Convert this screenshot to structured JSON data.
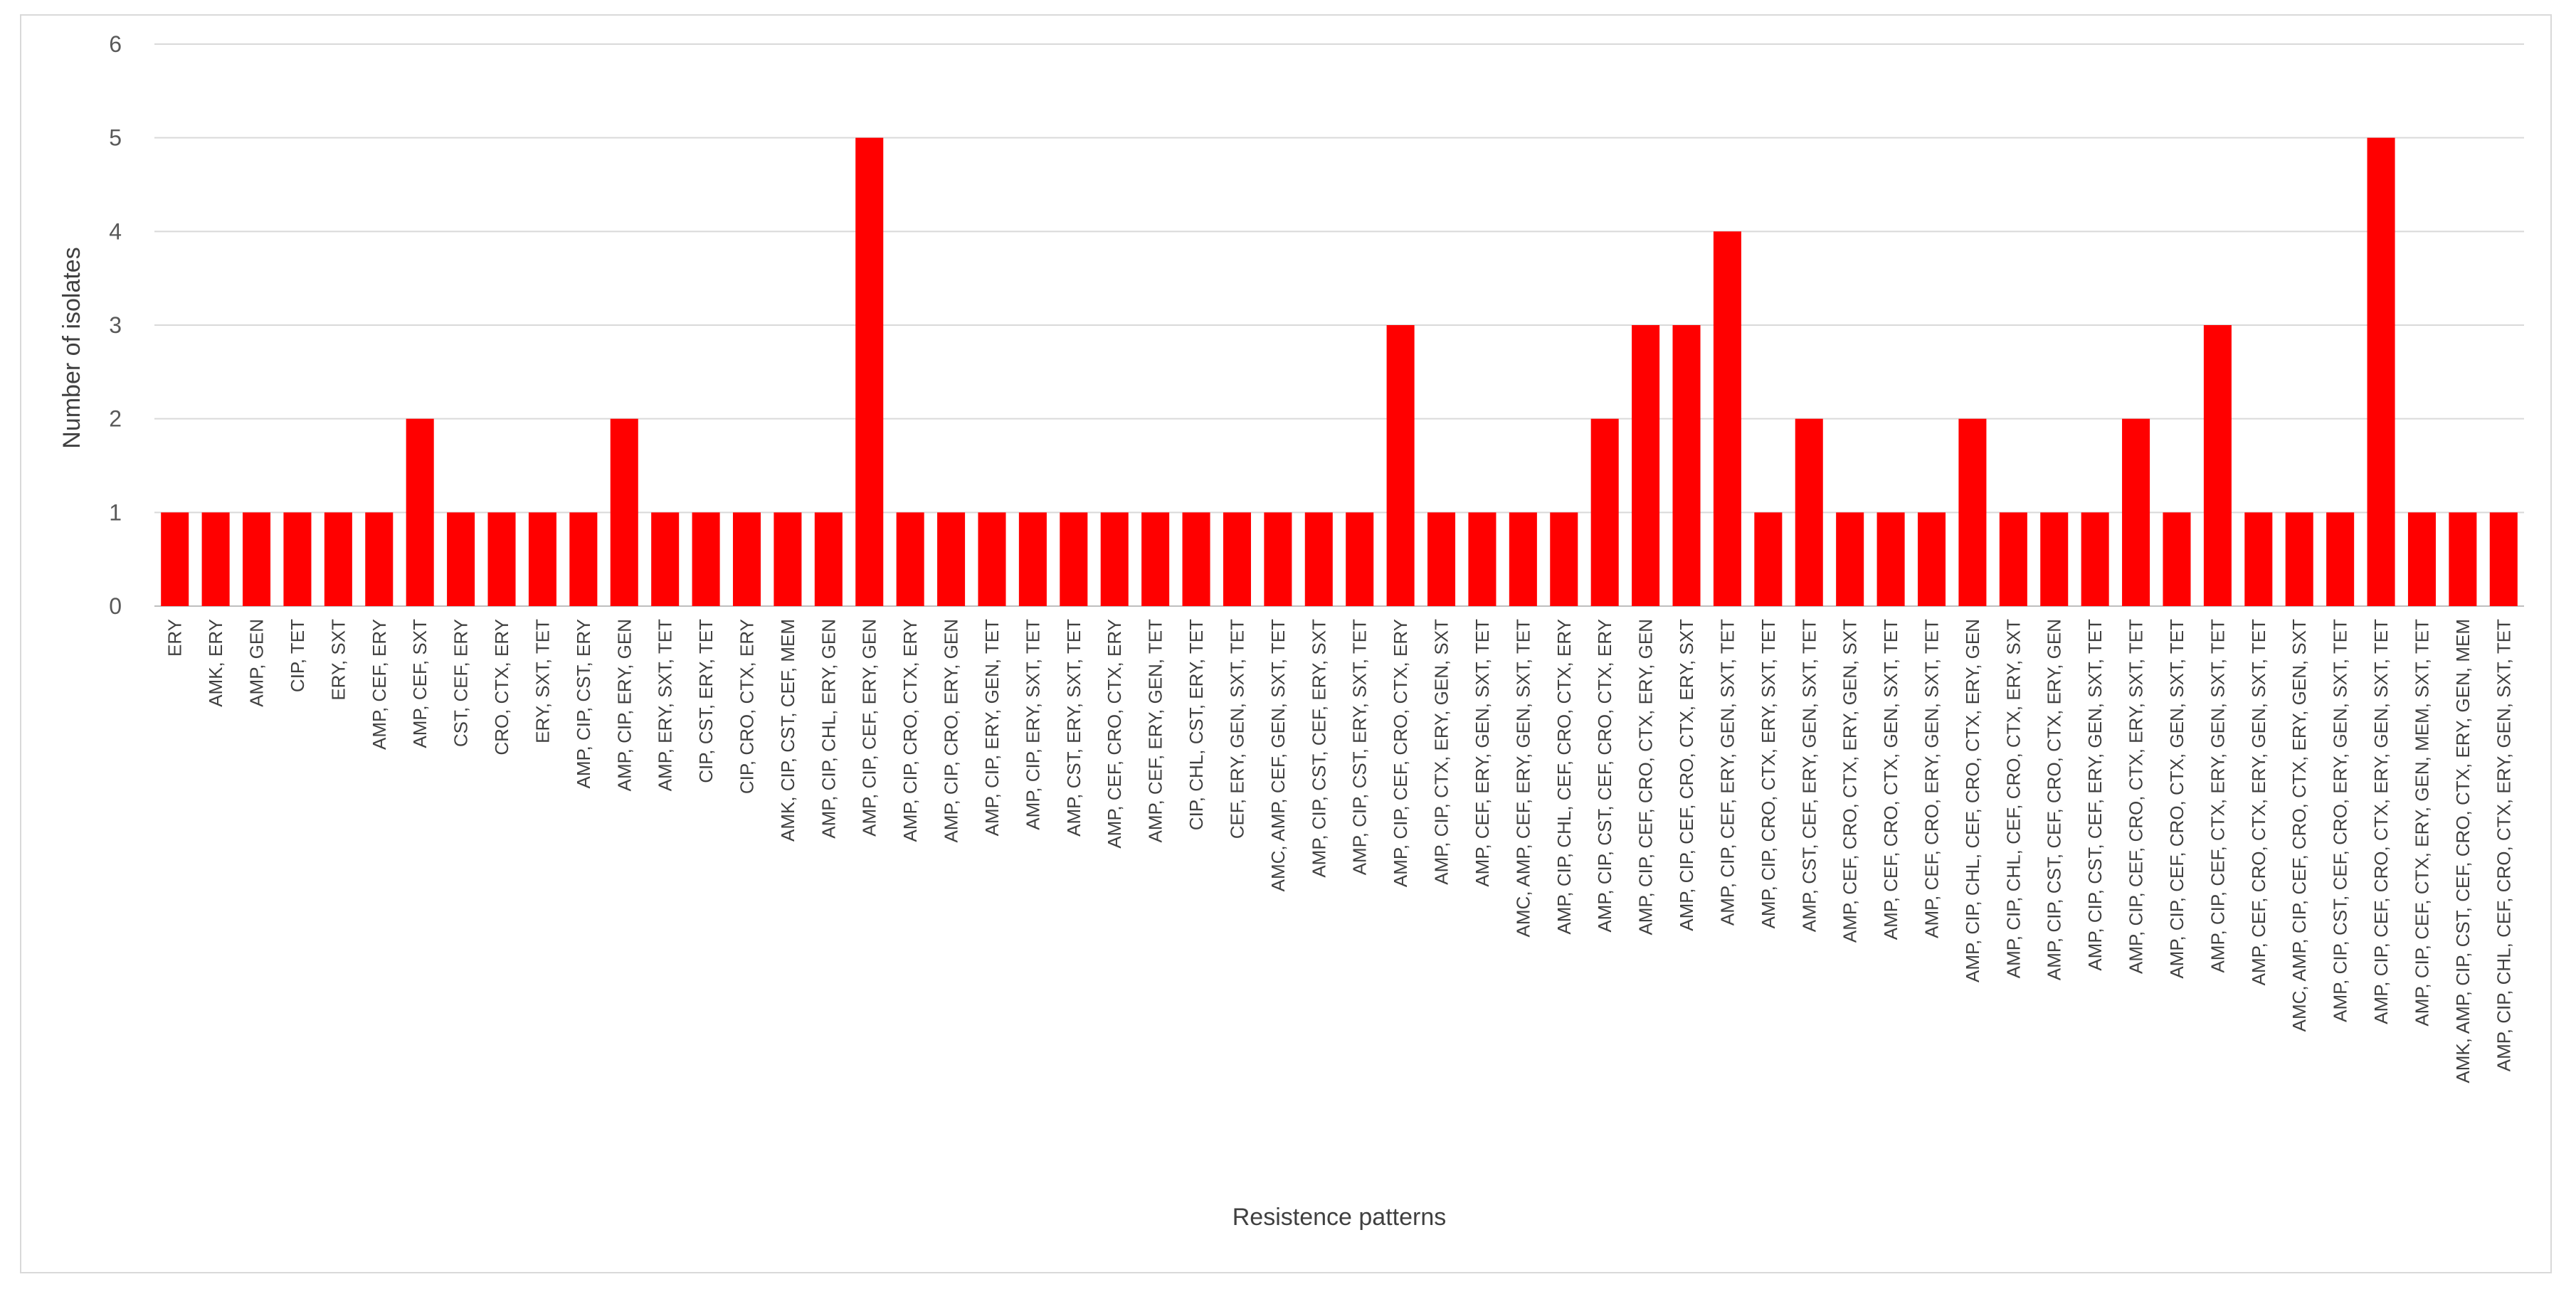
{
  "chart_data": {
    "type": "bar",
    "xlabel": "Resistence patterns",
    "ylabel": "Number of isolates",
    "ylim": [
      0,
      6
    ],
    "yticks": [
      0,
      1,
      2,
      3,
      4,
      5,
      6
    ],
    "grid": true,
    "bar_color": "#ff0000",
    "categories": [
      "ERY",
      "AMK, ERY",
      "AMP, GEN",
      "CIP, TET",
      "ERY, SXT",
      "AMP, CEF, ERY",
      "AMP, CEF, SXT",
      "CST, CEF, ERY",
      "CRO, CTX, ERY",
      "ERY, SXT, TET",
      "AMP, CIP, CST, ERY",
      "AMP, CIP, ERY, GEN",
      "AMP, ERY, SXT, TET",
      "CIP, CST, ERY, TET",
      "CIP, CRO, CTX, ERY",
      "AMK, CIP, CST, CEF, MEM",
      "AMP, CIP, CHL, ERY, GEN",
      "AMP, CIP, CEF, ERY, GEN",
      "AMP, CIP, CRO, CTX, ERY",
      "AMP, CIP, CRO, ERY, GEN",
      "AMP, CIP, ERY, GEN, TET",
      "AMP, CIP, ERY, SXT, TET",
      "AMP, CST, ERY, SXT, TET",
      "AMP, CEF, CRO, CTX, ERY",
      "AMP, CEF, ERY, GEN, TET",
      "CIP, CHL, CST, ERY, TET",
      "CEF, ERY, GEN, SXT, TET",
      "AMC, AMP, CEF, GEN, SXT, TET",
      "AMP, CIP, CST, CEF, ERY, SXT",
      "AMP, CIP, CST, ERY, SXT, TET",
      "AMP, CIP, CEF, CRO, CTX, ERY",
      "AMP, CIP, CTX, ERY, GEN, SXT",
      "AMP, CEF, ERY, GEN, SXT, TET",
      "AMC, AMP, CEF, ERY, GEN, SXT, TET",
      "AMP, CIP, CHL, CEF, CRO, CTX, ERY",
      "AMP, CIP, CST, CEF, CRO, CTX, ERY",
      "AMP, CIP, CEF, CRO, CTX, ERY, GEN",
      "AMP, CIP, CEF, CRO, CTX, ERY, SXT",
      "AMP, CIP, CEF, ERY, GEN, SXT, TET",
      "AMP, CIP, CRO, CTX, ERY, SXT, TET",
      "AMP, CST, CEF, ERY, GEN, SXT, TET",
      "AMP, CEF, CRO, CTX, ERY, GEN, SXT",
      "AMP, CEF, CRO, CTX, GEN, SXT, TET",
      "AMP, CEF, CRO, ERY, GEN, SXT, TET",
      "AMP, CIP, CHL, CEF, CRO, CTX, ERY, GEN",
      "AMP, CIP, CHL, CEF, CRO, CTX, ERY, SXT",
      "AMP, CIP, CST, CEF, CRO, CTX, ERY, GEN",
      "AMP, CIP, CST, CEF, ERY, GEN, SXT, TET",
      "AMP, CIP, CEF, CRO, CTX, ERY, SXT, TET",
      "AMP, CIP, CEF, CRO, CTX, GEN, SXT, TET",
      "AMP, CIP, CEF, CTX, ERY, GEN, SXT, TET",
      "AMP, CEF, CRO, CTX, ERY, GEN, SXT, TET",
      "AMC, AMP, CIP, CEF, CRO, CTX, ERY, GEN, SXT",
      "AMP, CIP, CST, CEF, CRO, ERY, GEN, SXT, TET",
      "AMP, CIP, CEF, CRO, CTX, ERY, GEN, SXT, TET",
      "AMP, CIP, CEF, CTX, ERY, GEN, MEM, SXT, TET",
      "AMK, AMP, CIP, CST, CEF, CRO, CTX, ERY, GEN, MEM",
      "AMP, CIP, CHL, CEF, CRO, CTX, ERY, GEN, SXT, TET"
    ],
    "values": [
      1,
      1,
      1,
      1,
      1,
      1,
      2,
      1,
      1,
      1,
      1,
      2,
      1,
      1,
      1,
      1,
      1,
      5,
      1,
      1,
      1,
      1,
      1,
      1,
      1,
      1,
      1,
      1,
      1,
      1,
      3,
      1,
      1,
      1,
      1,
      2,
      3,
      3,
      4,
      1,
      2,
      1,
      1,
      1,
      2,
      1,
      1,
      1,
      2,
      1,
      3,
      1,
      1,
      1,
      5,
      1,
      1,
      1
    ]
  }
}
